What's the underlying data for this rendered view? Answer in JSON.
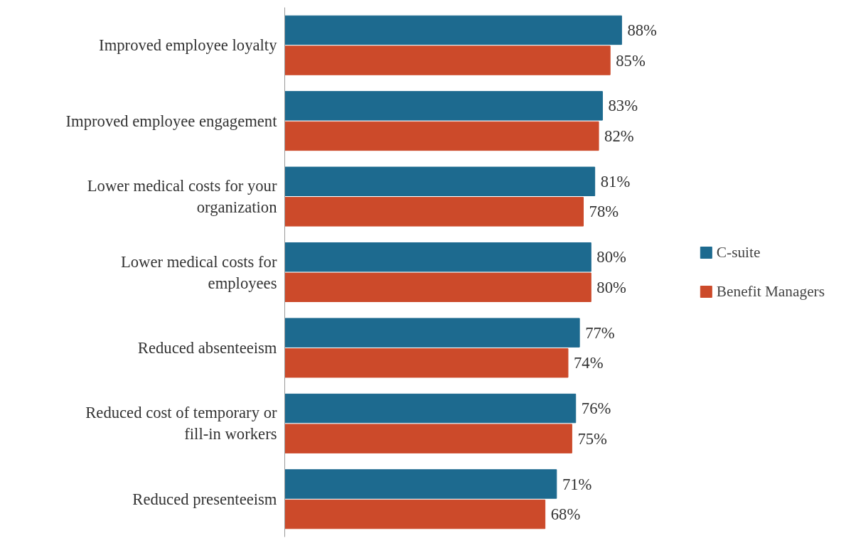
{
  "chart_data": {
    "type": "bar",
    "orientation": "horizontal",
    "categories": [
      "Improved employee loyalty",
      "Improved employee engagement",
      "Lower medical costs for your organization",
      "Lower medical costs for employees",
      "Reduced absenteeism",
      "Reduced cost of temporary or fill-in workers",
      "Reduced presenteeism"
    ],
    "series": [
      {
        "name": "C-suite",
        "color": "#1d6a8f",
        "values": [
          88,
          83,
          81,
          80,
          77,
          76,
          71
        ],
        "value_labels": [
          "88%",
          "83%",
          "81%",
          "80%",
          "77%",
          "76%",
          "71%"
        ]
      },
      {
        "name": "Benefit Managers",
        "color": "#cc4a2a",
        "values": [
          85,
          82,
          78,
          80,
          74,
          75,
          68
        ],
        "value_labels": [
          "85%",
          "82%",
          "78%",
          "80%",
          "74%",
          "75%",
          "68%"
        ]
      }
    ],
    "legend": "right",
    "grid": false
  }
}
